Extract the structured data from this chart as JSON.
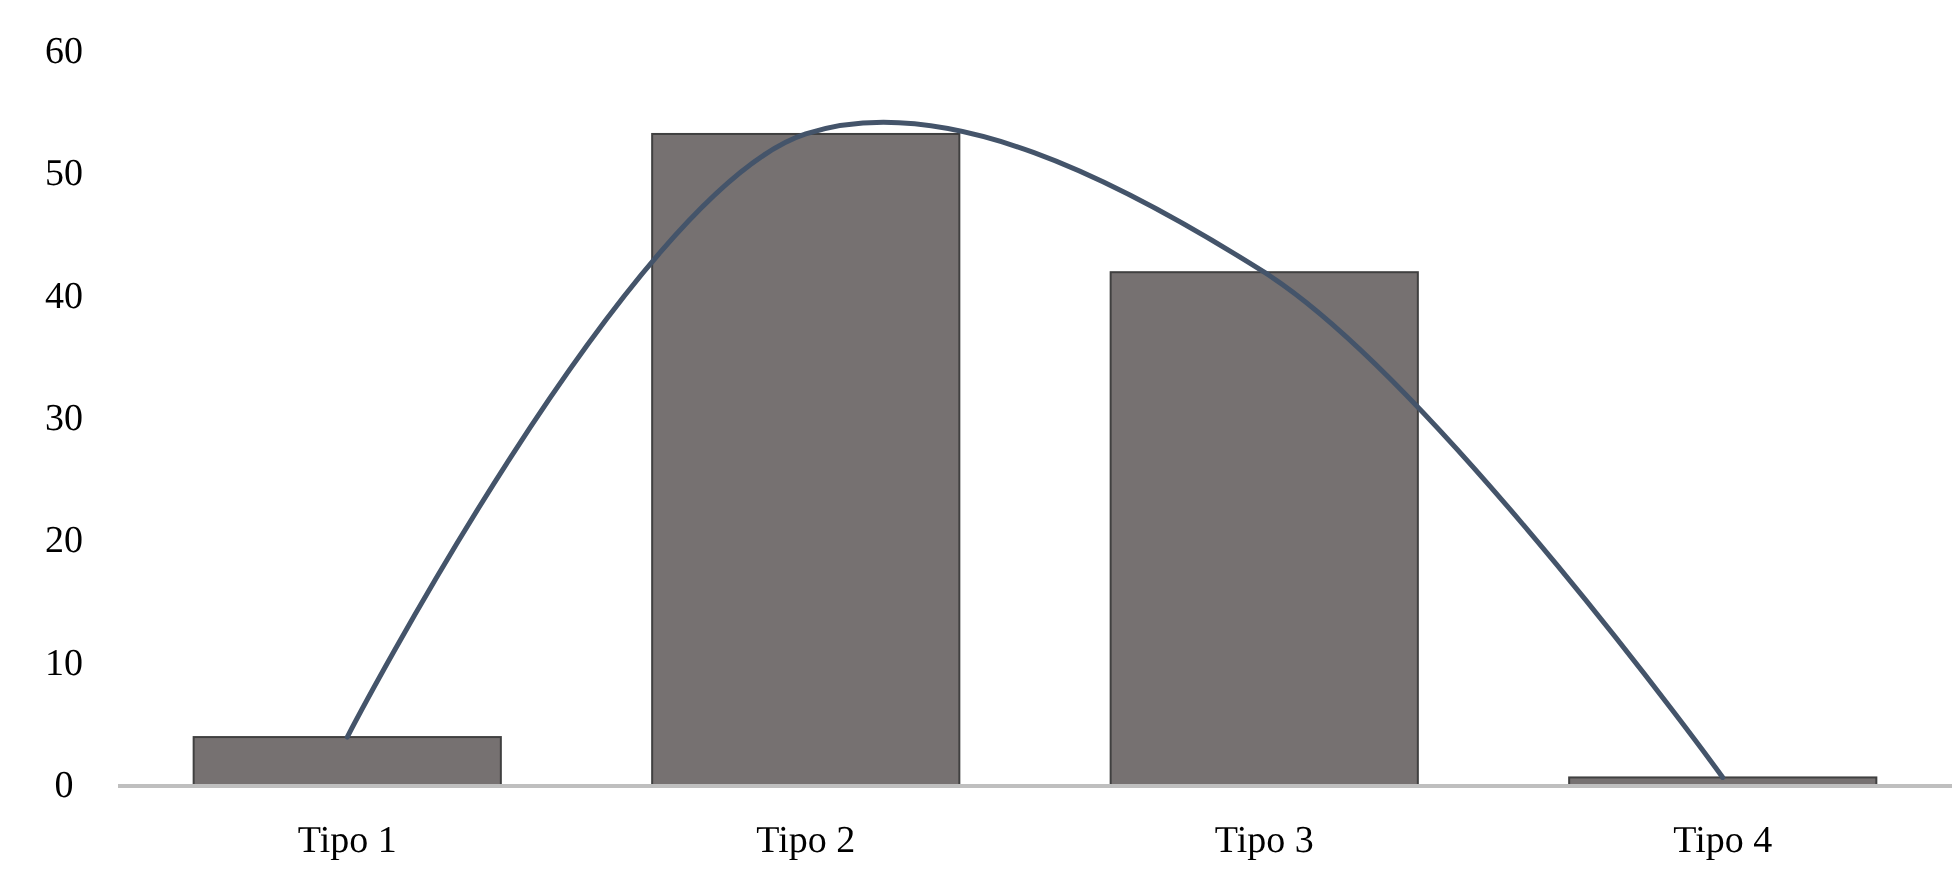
{
  "chart_data": {
    "type": "bar",
    "categories": [
      "Tipo 1",
      "Tipo 2",
      "Tipo 3",
      "Tipo 4"
    ],
    "ylim": [
      0,
      60
    ],
    "yticks": [
      0,
      10,
      20,
      30,
      40,
      50,
      60
    ],
    "series": [
      {
        "color": "#767171",
        "values": [
          4,
          53.3,
          42,
          0.7
        ]
      },
      {
        "type": "line",
        "color": "#44546a",
        "values": [
          4,
          53.3,
          42,
          0.7
        ]
      }
    ]
  }
}
